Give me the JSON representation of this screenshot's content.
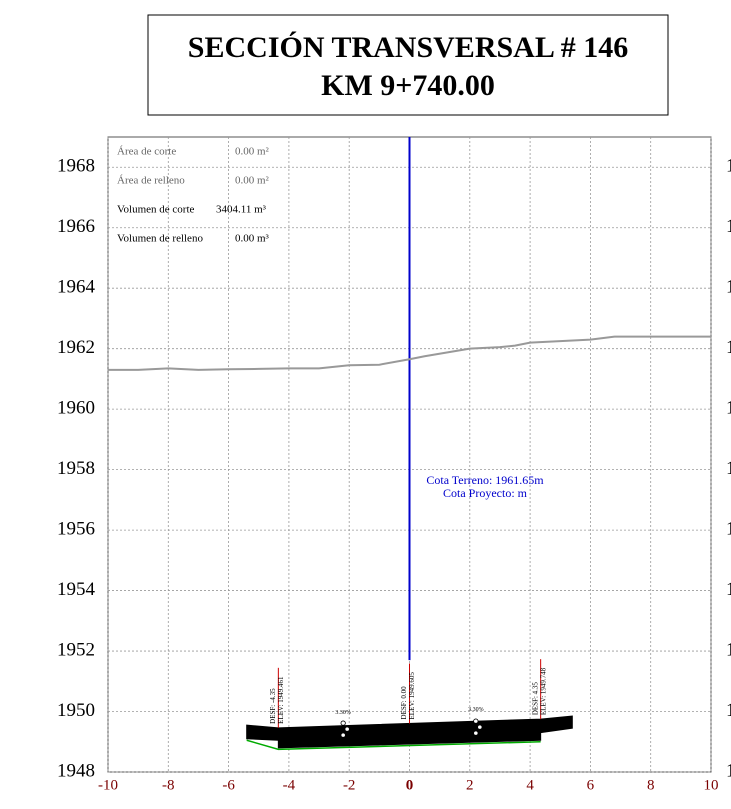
{
  "chart_data": {
    "type": "line",
    "title": "SECCIÓN TRANSVERSAL # 146",
    "subtitle": "KM 9+740.00",
    "xlim": [
      -10,
      10
    ],
    "xticks": [
      -10,
      -8,
      -6,
      -4,
      -2,
      0,
      2,
      4,
      6,
      8,
      10
    ],
    "ylim": [
      1948,
      1969
    ],
    "yticks": [
      1948,
      1950,
      1952,
      1954,
      1956,
      1958,
      1960,
      1962,
      1964,
      1966,
      1968
    ],
    "grid": true,
    "info": [
      {
        "label": "Área de corte",
        "value": "0.00 m²"
      },
      {
        "label": "Área de relleno",
        "value": "0.00 m²"
      },
      {
        "label": "Volumen de corte",
        "value": "3404.11 m³"
      },
      {
        "label": "Volumen de relleno",
        "value": "0.00 m³"
      }
    ],
    "annotations": [
      "Cota Terreno: 1961.65m",
      "Cota Proyecto: m"
    ],
    "terrain": {
      "color": "#999999",
      "x": [
        -10,
        -9,
        -8,
        -7,
        -6,
        -5,
        -4,
        -3,
        -2,
        -1,
        0,
        0.5,
        2,
        3,
        3.5,
        4,
        5,
        6,
        6.8,
        10
      ],
      "values": [
        1961.3,
        1961.3,
        1961.35,
        1961.3,
        1961.32,
        1961.33,
        1961.35,
        1961.35,
        1961.45,
        1961.47,
        1961.65,
        1961.75,
        1962.0,
        1962.05,
        1962.1,
        1962.2,
        1962.25,
        1962.3,
        1962.4,
        1962.4
      ]
    },
    "road": {
      "color": "#000000",
      "x": [
        -5.4,
        -4.35,
        4.35,
        5.4,
        5.4,
        4.35,
        4.35,
        -4.35,
        -4.35,
        -5.4
      ],
      "values": [
        1949.55,
        1949.46,
        1949.75,
        1949.85,
        1949.45,
        1949.3,
        1949.05,
        1948.8,
        1949.05,
        1949.1
      ]
    },
    "subgrade": {
      "color": "#00aa00",
      "x": [
        -5.4,
        -4.35,
        4.35
      ],
      "values": [
        1949.05,
        1948.75,
        1949.0
      ]
    },
    "stations": [
      {
        "x": -4.35,
        "elev": 1949.461,
        "desf_label": "DESF: -4.35",
        "elev_label": "ELEV: 1949.461"
      },
      {
        "x": 0,
        "elev": 1949.605,
        "desf_label": "DESF: 0.00",
        "elev_label": "ELEV: 1949.605"
      },
      {
        "x": 4.35,
        "elev": 1949.748,
        "desf_label": "DESF: 4.35",
        "elev_label": "ELEV: 1949.748"
      }
    ],
    "slopes": [
      {
        "x": -2.2,
        "label": "3.30%"
      },
      {
        "x": 2.2,
        "label": "3.30%"
      }
    ]
  }
}
